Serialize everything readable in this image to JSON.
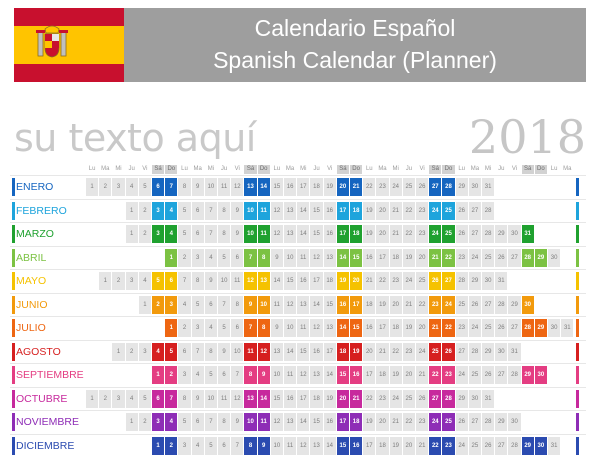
{
  "header": {
    "title_es": "Calendario Español",
    "title_en": "Spanish Calendar (Planner)",
    "subtitle": "su texto aquí",
    "year": "2018"
  },
  "day_headers": [
    "Lu",
    "Ma",
    "Mi",
    "Ju",
    "Vi",
    "Sá",
    "Do"
  ],
  "months": [
    {
      "name": "ENERO",
      "color": "#1565c0",
      "offset": 0,
      "days": 31
    },
    {
      "name": "FEBRERO",
      "color": "#1ea4dc",
      "offset": 3,
      "days": 28
    },
    {
      "name": "MARZO",
      "color": "#1fa12f",
      "offset": 3,
      "days": 31
    },
    {
      "name": "ABRIL",
      "color": "#7cc243",
      "offset": 6,
      "days": 30
    },
    {
      "name": "MAYO",
      "color": "#f5c200",
      "offset": 1,
      "days": 31
    },
    {
      "name": "JUNIO",
      "color": "#f29a0c",
      "offset": 4,
      "days": 30
    },
    {
      "name": "JULIO",
      "color": "#ee6612",
      "offset": 6,
      "days": 31
    },
    {
      "name": "AGOSTO",
      "color": "#d61f1f",
      "offset": 2,
      "days": 31
    },
    {
      "name": "SEPTIEMBRE",
      "color": "#e43d82",
      "offset": 5,
      "days": 30
    },
    {
      "name": "OCTUBRE",
      "color": "#c7299d",
      "offset": 0,
      "days": 31
    },
    {
      "name": "NOVIEMBRE",
      "color": "#8e2db6",
      "offset": 3,
      "days": 30
    },
    {
      "name": "DICIEMBRE",
      "color": "#2b4bb0",
      "offset": 5,
      "days": 31
    }
  ],
  "flag_colors": {
    "red": "#c8102e",
    "yellow": "#ffc400"
  }
}
